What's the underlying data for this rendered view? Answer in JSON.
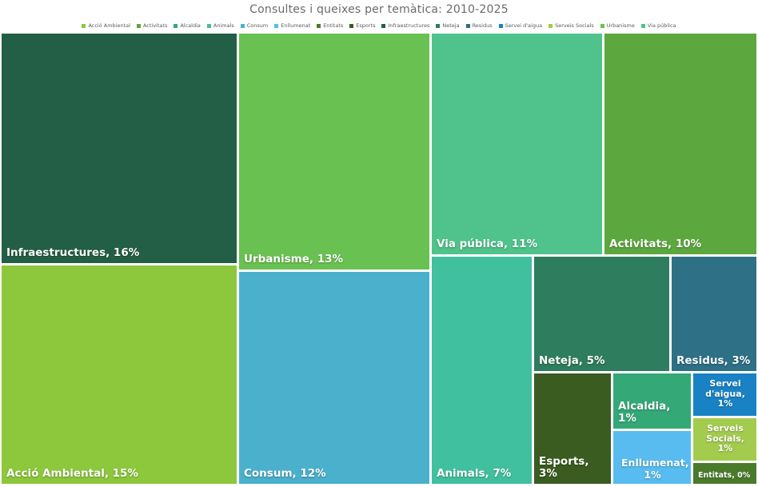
{
  "title": "Consultes i queixes per temàtica: 2010-2025",
  "legend": {
    "position": "top",
    "items": [
      {
        "label": "Acció Ambiental",
        "color": "#8DC73C"
      },
      {
        "label": "Activitats",
        "color": "#5CA73E"
      },
      {
        "label": "Alcaldia",
        "color": "#35A878"
      },
      {
        "label": "Animals",
        "color": "#40C09E"
      },
      {
        "label": "Consum",
        "color": "#4BB0CC"
      },
      {
        "label": "Enllumenat",
        "color": "#58BCF0"
      },
      {
        "label": "Entitats",
        "color": "#4A7B2A"
      },
      {
        "label": "Esports",
        "color": "#3A5C21"
      },
      {
        "label": "Infraestructures",
        "color": "#235F46"
      },
      {
        "label": "Neteja",
        "color": "#2E7D5E"
      },
      {
        "label": "Residus",
        "color": "#2E7085"
      },
      {
        "label": "Servei d'aigua",
        "color": "#1982C4"
      },
      {
        "label": "Serveis Socials",
        "color": "#A3CC4E"
      },
      {
        "label": "Urbanisme",
        "color": "#69C151"
      },
      {
        "label": "Via pública",
        "color": "#4FC38B"
      }
    ]
  },
  "tiles": [
    {
      "name": "Infraestructures",
      "pct": 16,
      "label": "Infraestructures, 16%",
      "color": "#235F46"
    },
    {
      "name": "Acció Ambiental",
      "pct": 15,
      "label": "Acció Ambiental, 15%",
      "color": "#8DC73C"
    },
    {
      "name": "Urbanisme",
      "pct": 13,
      "label": "Urbanisme, 13%",
      "color": "#69C151"
    },
    {
      "name": "Consum",
      "pct": 12,
      "label": "Consum, 12%",
      "color": "#4BB0CC"
    },
    {
      "name": "Via pública",
      "pct": 11,
      "label": "Via pública, 11%",
      "color": "#4FC38B"
    },
    {
      "name": "Activitats",
      "pct": 10,
      "label": "Activitats, 10%",
      "color": "#5CA73E"
    },
    {
      "name": "Animals",
      "pct": 7,
      "label": "Animals, 7%",
      "color": "#40C09E"
    },
    {
      "name": "Neteja",
      "pct": 5,
      "label": "Neteja, 5%",
      "color": "#2E7D5E"
    },
    {
      "name": "Residus",
      "pct": 3,
      "label": "Residus, 3%",
      "color": "#2E7085"
    },
    {
      "name": "Esports",
      "pct": 3,
      "label": "Esports, 3%",
      "color": "#3A5C21"
    },
    {
      "name": "Alcaldia",
      "pct": 1,
      "label": "Alcaldia, 1%",
      "color": "#35A878"
    },
    {
      "name": "Enllumenat",
      "pct": 1,
      "label": "Enllumenat, 1%",
      "color": "#58BCF0"
    },
    {
      "name": "Servei d'aigua",
      "pct": 1,
      "label": "Servei d'aigua, 1%",
      "color": "#1982C4"
    },
    {
      "name": "Serveis Socials",
      "pct": 1,
      "label": "Serveis Socials, 1%",
      "color": "#A3CC4E"
    },
    {
      "name": "Entitats",
      "pct": 0,
      "label": "Entitats, 0%",
      "color": "#4A7B2A"
    }
  ],
  "chart_data": {
    "type": "treemap",
    "title": "Consultes i queixes per temàtica: 2010-2025",
    "unit": "%",
    "categories": [
      "Infraestructures",
      "Acció Ambiental",
      "Urbanisme",
      "Consum",
      "Via pública",
      "Activitats",
      "Animals",
      "Neteja",
      "Residus",
      "Esports",
      "Alcaldia",
      "Enllumenat",
      "Servei d'aigua",
      "Serveis Socials",
      "Entitats"
    ],
    "values": [
      16,
      15,
      13,
      12,
      11,
      10,
      7,
      5,
      3,
      3,
      1,
      1,
      1,
      1,
      0
    ],
    "legend_position": "top",
    "legend_entries": [
      "Acció Ambiental",
      "Activitats",
      "Alcaldia",
      "Animals",
      "Consum",
      "Enllumenat",
      "Entitats",
      "Esports",
      "Infraestructures",
      "Neteja",
      "Residus",
      "Servei d'aigua",
      "Serveis Socials",
      "Urbanisme",
      "Via pública"
    ]
  }
}
